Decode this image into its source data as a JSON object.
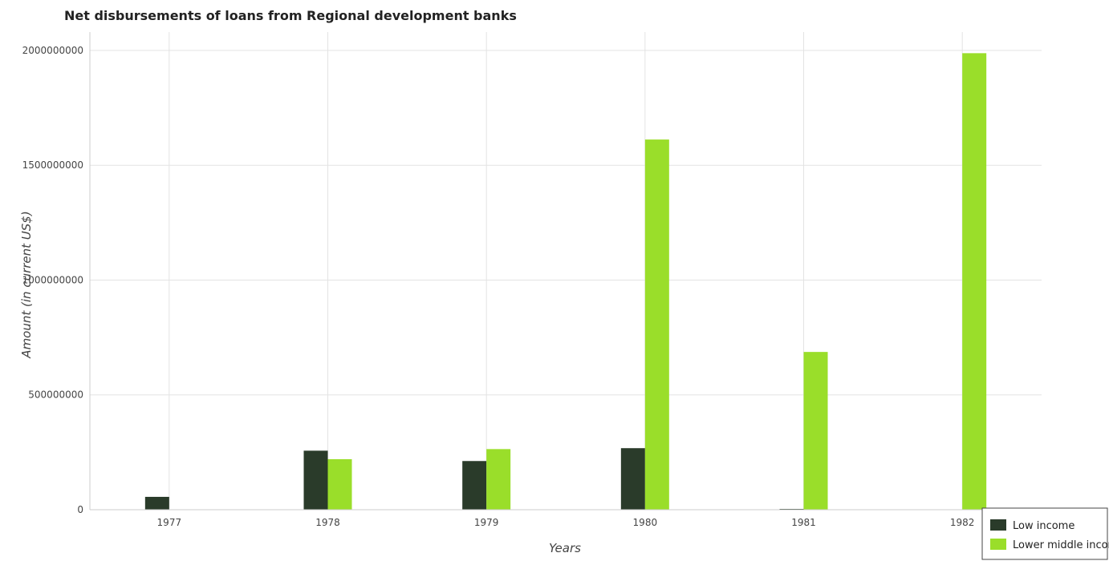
{
  "chart_data": {
    "type": "bar",
    "title": "Net disbursements of loans from Regional development banks",
    "xlabel": "Years",
    "ylabel": "Amount (in current US$)",
    "categories": [
      "1977",
      "1978",
      "1979",
      "1980",
      "1981",
      "1982"
    ],
    "series": [
      {
        "name": "Low income",
        "color": "#2a3b2a",
        "values": [
          56000000,
          257000000,
          212000000,
          268000000,
          3500000,
          0
        ]
      },
      {
        "name": "Lower middle income",
        "color": "#9ade2a",
        "values": [
          0,
          220000000,
          264000000,
          1612000000,
          687000000,
          1988000000
        ]
      }
    ],
    "ylim": [
      0,
      2080000000
    ],
    "yticks": [
      0,
      500000000,
      1000000000,
      1500000000,
      2000000000
    ],
    "ytick_labels": [
      "0",
      "500000000",
      "1000000000",
      "1500000000",
      "2000000000"
    ],
    "grid": true,
    "legend_position": "bottom-right"
  }
}
